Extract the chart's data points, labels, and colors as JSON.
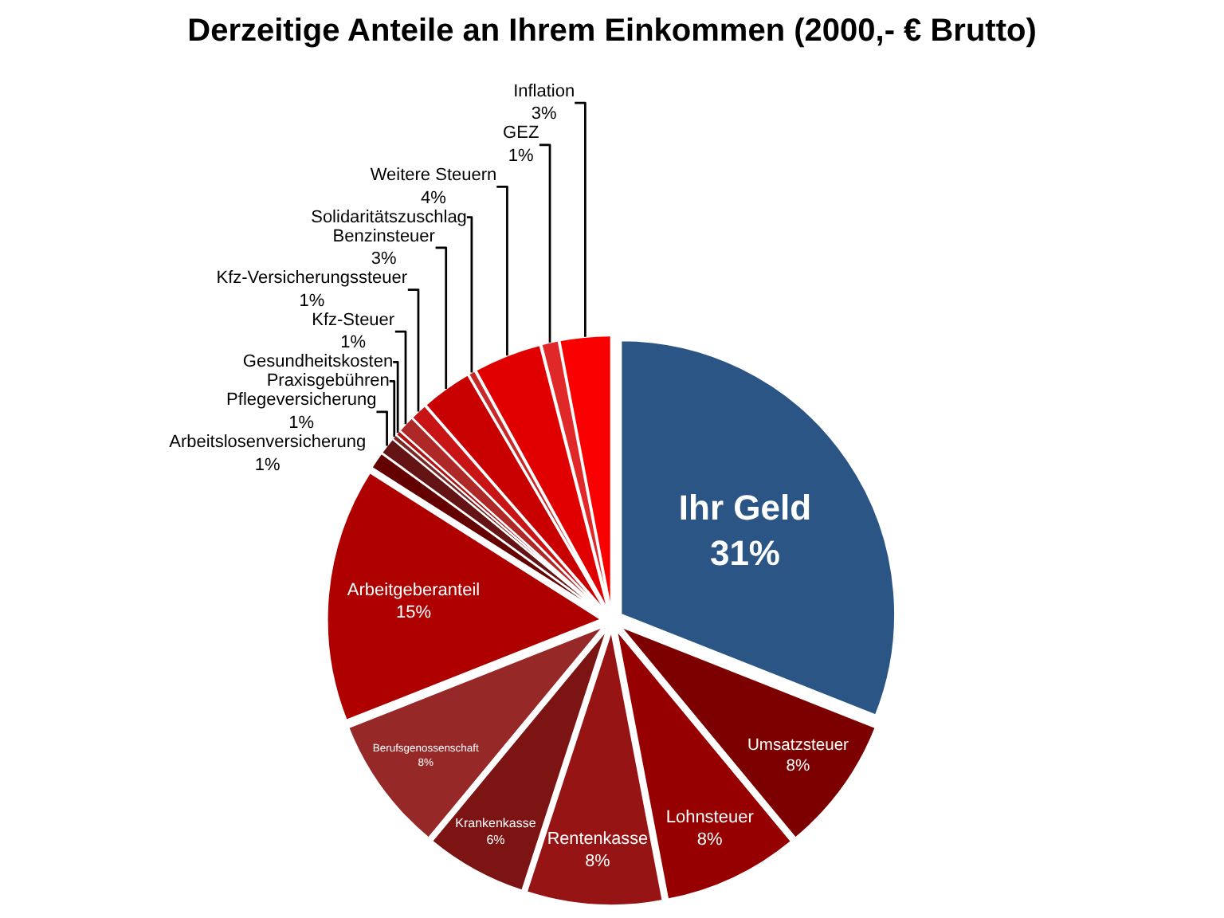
{
  "chart_data": {
    "type": "pie",
    "title": "Derzeitige Anteile an Ihrem Einkommen (2000,- € Brutto)",
    "categories": [
      "Ihr Geld",
      "Umsatzsteuer",
      "Lohnsteuer",
      "Rentenkasse",
      "Krankenkasse",
      "Berufsgenossenschaft",
      "Arbeitgeberanteil",
      "Arbeitslosenversicherung",
      "Pflegeversicherung",
      "Praxisgebühren",
      "Gesundheitskosten",
      "Kfz-Steuer",
      "Kfz-Versicherungssteuer",
      "Benzinsteuer",
      "Solidaritätszuschlag",
      "Weitere Steuern",
      "GEZ",
      "Inflation"
    ],
    "values": [
      31,
      8,
      8,
      8,
      6,
      8,
      15,
      1,
      1,
      0.3,
      0.3,
      1,
      1,
      3,
      0.4,
      4,
      1,
      3
    ],
    "value_labels": [
      "31%",
      "8%",
      "8%",
      "8%",
      "6%",
      "8%",
      "15%",
      "1%",
      "1%",
      null,
      null,
      "1%",
      "1%",
      "3%",
      null,
      "4%",
      "1%",
      "3%"
    ],
    "colors": [
      "#2b5584",
      "#7d0000",
      "#960000",
      "#961414",
      "#7d1414",
      "#962828",
      "#af0000",
      "#640000",
      "#641414",
      "#7d2828",
      "#af1414",
      "#af2828",
      "#c81414",
      "#c80000",
      "#c82828",
      "#e10000",
      "#e12828",
      "#fa0000"
    ]
  }
}
